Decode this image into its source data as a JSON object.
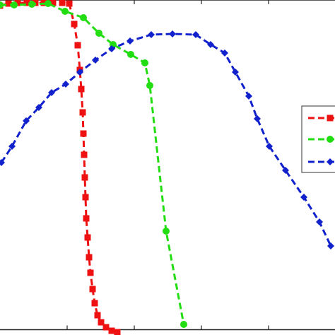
{
  "chart_data": {
    "type": "line",
    "title": "",
    "xlabel": "",
    "ylabel": "",
    "xlim": [
      0,
      474
    ],
    "ylim": [
      0,
      474
    ],
    "grid": false,
    "legend_position": "right",
    "x_ticks": [
      95,
      190,
      285,
      380
    ],
    "series": [
      {
        "color": "#ee1111",
        "marker": "square",
        "points": [
          [
            0,
            466
          ],
          [
            12,
            469
          ],
          [
            25,
            470
          ],
          [
            38,
            470
          ],
          [
            50,
            470
          ],
          [
            62,
            470
          ],
          [
            75,
            470
          ],
          [
            88,
            470
          ],
          [
            98,
            469
          ],
          [
            105,
            440
          ],
          [
            110,
            410
          ],
          [
            113,
            375
          ],
          [
            115,
            348
          ],
          [
            117,
            315
          ],
          [
            118,
            285
          ],
          [
            119,
            255
          ],
          [
            120,
            223
          ],
          [
            121,
            195
          ],
          [
            122,
            165
          ],
          [
            124,
            138
          ],
          [
            126,
            110
          ],
          [
            128,
            88
          ],
          [
            131,
            65
          ],
          [
            134,
            45
          ],
          [
            138,
            28
          ],
          [
            143,
            18
          ],
          [
            150,
            11
          ],
          [
            158,
            6
          ],
          [
            166,
            4
          ]
        ]
      },
      {
        "color": "#22dd11",
        "marker": "circle",
        "points": [
          [
            0,
            467
          ],
          [
            20,
            467
          ],
          [
            45,
            468
          ],
          [
            68,
            469
          ],
          [
            92,
            458
          ],
          [
            118,
            449
          ],
          [
            140,
            427
          ],
          [
            160,
            411
          ],
          [
            185,
            397
          ],
          [
            205,
            385
          ],
          [
            212,
            353
          ],
          [
            235,
            147
          ],
          [
            260,
            15
          ]
        ]
      },
      {
        "color": "#1122cc",
        "marker": "diamond",
        "points": [
          [
            2,
            244
          ],
          [
            17,
            267
          ],
          [
            37,
            303
          ],
          [
            55,
            322
          ],
          [
            73,
            343
          ],
          [
            93,
            355
          ],
          [
            113,
            372
          ],
          [
            135,
            389
          ],
          [
            158,
            405
          ],
          [
            184,
            416
          ],
          [
            214,
            425
          ],
          [
            244,
            426
          ],
          [
            277,
            425
          ],
          [
            298,
            411
          ],
          [
            318,
            399
          ],
          [
            333,
            372
          ],
          [
            352,
            338
          ],
          [
            364,
            306
          ],
          [
            381,
            267
          ],
          [
            404,
            233
          ],
          [
            430,
            195
          ],
          [
            452,
            160
          ],
          [
            468,
            126
          ]
        ]
      }
    ]
  }
}
